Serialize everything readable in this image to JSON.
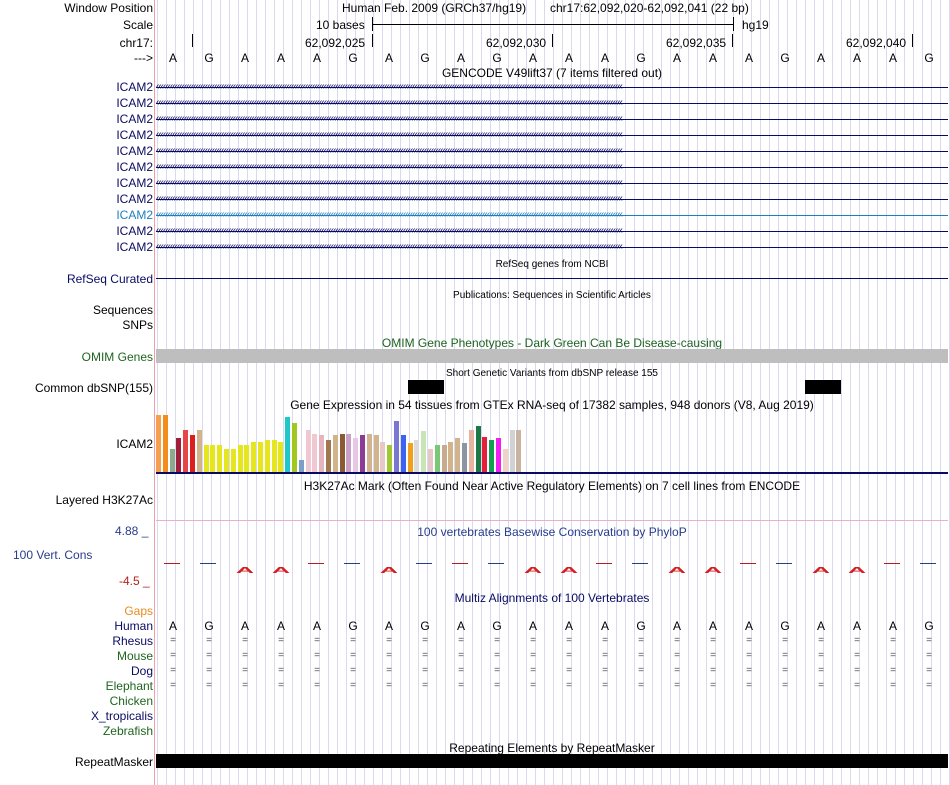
{
  "header": {
    "window_position_label": "Window Position",
    "scale_label": "Scale",
    "chrom_label": "chr17:",
    "arrow_label": "--->",
    "assembly_text": "Human Feb. 2009 (GRCh37/hg19)",
    "position_text": "chr17:62,092,020-62,092,041 (22 bp)",
    "scale_text": "10 bases",
    "db_text": "hg19",
    "coordinates": [
      "62,092,025",
      "62,092,030",
      "62,092,035",
      "62,092,040"
    ]
  },
  "bases": [
    "A",
    "G",
    "A",
    "A",
    "A",
    "G",
    "A",
    "G",
    "A",
    "G",
    "A",
    "A",
    "A",
    "G",
    "A",
    "A",
    "A",
    "G",
    "A",
    "A",
    "A",
    "G"
  ],
  "gencode": {
    "title": "GENCODE V49lift37 (7 items filtered out)",
    "items": [
      "ICAM2",
      "ICAM2",
      "ICAM2",
      "ICAM2",
      "ICAM2",
      "ICAM2",
      "ICAM2",
      "ICAM2",
      "ICAM2",
      "ICAM2",
      "ICAM2"
    ],
    "selected_index": 8,
    "color": "#0a0a64",
    "selected_color": "#1a7fc0"
  },
  "refseq": {
    "label": "RefSeq Curated",
    "title": "RefSeq genes from NCBI"
  },
  "publications": {
    "label1": "Sequences",
    "label2": "SNPs",
    "title": "Publications: Sequences in Scientific Articles"
  },
  "omim": {
    "label": "OMIM Genes",
    "title": "OMIM Gene Phenotypes - Dark Green Can Be Disease-causing",
    "color": "#1e641e"
  },
  "dbsnp": {
    "label": "Common dbSNP(155)",
    "title": "Short Genetic Variants from dbSNP release 155"
  },
  "gtex": {
    "label": "ICAM2",
    "title": "Gene Expression in 54 tissues from GTEx RNA-seq of 17382 samples, 948 donors (V8, Aug 2019)",
    "values": [
      0.98,
      0.98,
      0.4,
      0.58,
      0.72,
      0.63,
      0.72,
      0.47,
      0.47,
      0.47,
      0.4,
      0.4,
      0.47,
      0.47,
      0.52,
      0.52,
      0.56,
      0.56,
      0.52,
      0.94,
      0.85,
      0.2,
      0.72,
      0.65,
      0.63,
      0.56,
      0.63,
      0.65,
      0.65,
      0.58,
      0.63,
      0.65,
      0.63,
      0.52,
      0.47,
      0.88,
      0.63,
      0.5,
      0.56,
      0.7,
      0.4,
      0.47,
      0.47,
      0.52,
      0.58,
      0.5,
      0.72,
      0.8,
      0.6,
      0.55,
      0.58,
      0.4,
      0.72,
      0.72
    ],
    "colors": [
      "#f5a050",
      "#f58c1e",
      "#8caa8c",
      "#a01e3c",
      "#e64646",
      "#dc1e1e",
      "#d2b48c",
      "#e6e61e",
      "#e6e61e",
      "#e6e61e",
      "#e6e61e",
      "#e6e61e",
      "#e6e61e",
      "#e6e61e",
      "#e6e61e",
      "#e6e61e",
      "#e6e61e",
      "#e6e61e",
      "#e6e61e",
      "#1ec8c8",
      "#a0c81e",
      "#78a0c8",
      "#f0c8d2",
      "#f0c8d2",
      "#e6b4be",
      "#a07850",
      "#d2b48c",
      "#8c5a32",
      "#c8a0c8",
      "#e6c8e6",
      "#8c3c96",
      "#d2b48c",
      "#d2b48c",
      "#e6c8c8",
      "#a0c832",
      "#7878d2",
      "#3c64f0",
      "#f0a01e",
      "#dcdcdc",
      "#c8e6b4",
      "#e6c8c8",
      "#78c878",
      "#c8aa8c",
      "#d2b48c",
      "#d2b48c",
      "#8c96a0",
      "#e6b4a0",
      "#1e7846",
      "#e61e3c",
      "#14a050",
      "#f01ef0",
      "#f0d2c8",
      "#d2d2d2",
      "#c8b4a0"
    ]
  },
  "h3k27ac": {
    "label": "Layered H3K27Ac",
    "title": "H3K27Ac Mark (Often Found Near Active Regulatory Elements) on 7 cell lines from ENCODE"
  },
  "phylop": {
    "label": "100 Vert. Cons",
    "max_label": "4.88 _",
    "min_label": "-4.5 _",
    "title": "100 vertebrates Basewise Conservation by PhyloP",
    "color": "#283c8c"
  },
  "multiz": {
    "title": "Multiz Alignments of 100 Vertebrates",
    "gaps_label": "Gaps",
    "species": [
      {
        "name": "Human",
        "color": "#0a0a64",
        "aligned": true
      },
      {
        "name": "Rhesus",
        "color": "#0a0a64",
        "aligned": true
      },
      {
        "name": "Mouse",
        "color": "#1e641e",
        "aligned": true
      },
      {
        "name": "Dog",
        "color": "#0a0a64",
        "aligned": true
      },
      {
        "name": "Elephant",
        "color": "#1e641e",
        "aligned": true
      },
      {
        "name": "Chicken",
        "color": "#1e641e",
        "aligned": false
      },
      {
        "name": "X_tropicalis",
        "color": "#0a0a64",
        "aligned": false
      },
      {
        "name": "Zebrafish",
        "color": "#1e641e",
        "aligned": false
      }
    ],
    "equal_symbol": "="
  },
  "repeatmasker": {
    "label": "RepeatMasker",
    "title": "Repeating Elements by RepeatMasker"
  }
}
